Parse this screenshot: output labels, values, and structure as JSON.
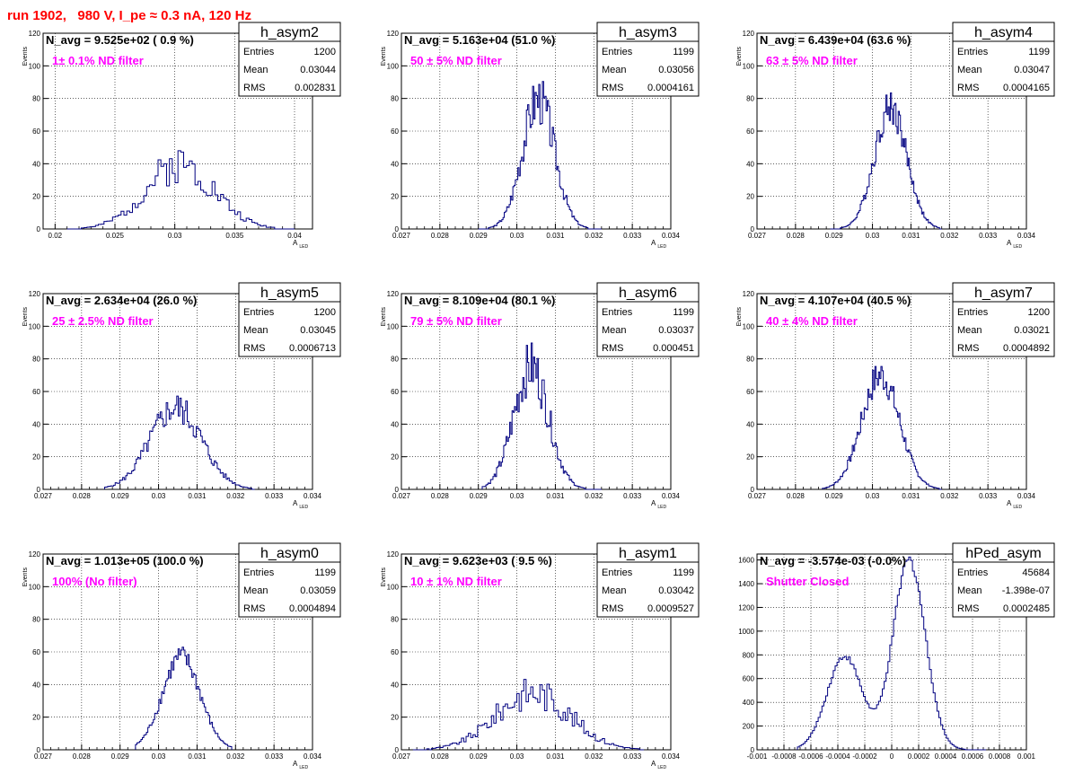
{
  "run_title": "run 1902,   980 V, I_pe ≈ 0.3 nA, 120 Hz",
  "chart_data": [
    {
      "type": "histogram",
      "name": "h_asym2",
      "stats_title": "h_asym2",
      "entries": "1200",
      "mean": "0.03044",
      "rms": "0.002831",
      "navg": "N_avg = 9.525e+02 ( 0.9 %)",
      "filter": "1± 0.1% ND filter",
      "xlabel": "A",
      "xlabel_sub": "LED",
      "ylabel": "Events",
      "xlim": [
        0.019,
        0.0415
      ],
      "ylim": [
        0,
        120
      ],
      "xticks": [
        {
          "v": 0.02,
          "l": "0.02"
        },
        {
          "v": 0.025,
          "l": "0.025"
        },
        {
          "v": 0.03,
          "l": "0.03"
        },
        {
          "v": 0.035,
          "l": "0.035"
        },
        {
          "v": 0.04,
          "l": "0.04"
        }
      ],
      "yticks": [
        {
          "v": 0,
          "l": "0"
        },
        {
          "v": 20,
          "l": "20"
        },
        {
          "v": 40,
          "l": "40"
        },
        {
          "v": 60,
          "l": "60"
        },
        {
          "v": 80,
          "l": "80"
        },
        {
          "v": 100,
          "l": "100"
        },
        {
          "v": 120,
          "l": "120"
        }
      ],
      "mu": 0.03044,
      "sigma": 0.002831,
      "peak": 40,
      "noise": 0.3,
      "seed": 2,
      "bins": 80,
      "range": [
        0.021,
        0.04
      ]
    },
    {
      "type": "histogram",
      "name": "h_asym3",
      "stats_title": "h_asym3",
      "entries": "1199",
      "mean": "0.03056",
      "rms": "0.0004161",
      "navg": "N_avg = 5.163e+04 (51.0 %)",
      "filter": "50 ± 5% ND filter",
      "xlabel": "A",
      "xlabel_sub": "LED",
      "ylabel": "Events",
      "xlim": [
        0.027,
        0.034
      ],
      "ylim": [
        0,
        120
      ],
      "xticks": [
        {
          "v": 0.027,
          "l": "0.027"
        },
        {
          "v": 0.028,
          "l": "0.028"
        },
        {
          "v": 0.029,
          "l": "0.029"
        },
        {
          "v": 0.03,
          "l": "0.03"
        },
        {
          "v": 0.031,
          "l": "0.031"
        },
        {
          "v": 0.032,
          "l": "0.032"
        },
        {
          "v": 0.033,
          "l": "0.033"
        },
        {
          "v": 0.034,
          "l": "0.034"
        }
      ],
      "yticks": [
        {
          "v": 0,
          "l": "0"
        },
        {
          "v": 20,
          "l": "20"
        },
        {
          "v": 40,
          "l": "40"
        },
        {
          "v": 60,
          "l": "60"
        },
        {
          "v": 80,
          "l": "80"
        },
        {
          "v": 100,
          "l": "100"
        },
        {
          "v": 120,
          "l": "120"
        }
      ],
      "mu": 0.03056,
      "sigma": 0.000416,
      "peak": 80,
      "noise": 0.2,
      "seed": 3,
      "bins": 100,
      "range": [
        0.029,
        0.0322
      ]
    },
    {
      "type": "histogram",
      "name": "h_asym4",
      "stats_title": "h_asym4",
      "entries": "1199",
      "mean": "0.03047",
      "rms": "0.0004165",
      "navg": "N_avg = 6.439e+04 (63.6 %)",
      "filter": "63 ± 5% ND filter",
      "xlabel": "A",
      "xlabel_sub": "LED",
      "ylabel": "Events",
      "xlim": [
        0.027,
        0.034
      ],
      "ylim": [
        0,
        120
      ],
      "xticks": [
        {
          "v": 0.027,
          "l": "0.027"
        },
        {
          "v": 0.028,
          "l": "0.028"
        },
        {
          "v": 0.029,
          "l": "0.029"
        },
        {
          "v": 0.03,
          "l": "0.03"
        },
        {
          "v": 0.031,
          "l": "0.031"
        },
        {
          "v": 0.032,
          "l": "0.032"
        },
        {
          "v": 0.033,
          "l": "0.033"
        },
        {
          "v": 0.034,
          "l": "0.034"
        }
      ],
      "yticks": [
        {
          "v": 0,
          "l": "0"
        },
        {
          "v": 20,
          "l": "20"
        },
        {
          "v": 40,
          "l": "40"
        },
        {
          "v": 60,
          "l": "60"
        },
        {
          "v": 80,
          "l": "80"
        },
        {
          "v": 100,
          "l": "100"
        },
        {
          "v": 120,
          "l": "120"
        }
      ],
      "mu": 0.03047,
      "sigma": 0.000417,
      "peak": 75,
      "noise": 0.15,
      "seed": 4,
      "bins": 100,
      "range": [
        0.0289,
        0.0318
      ]
    },
    {
      "type": "histogram",
      "name": "h_asym5",
      "stats_title": "h_asym5",
      "entries": "1200",
      "mean": "0.03045",
      "rms": "0.0006713",
      "navg": "N_avg = 2.634e+04 (26.0 %)",
      "filter": "25 ± 2.5% ND filter",
      "xlabel": "A",
      "xlabel_sub": "LED",
      "ylabel": "Events",
      "xlim": [
        0.027,
        0.034
      ],
      "ylim": [
        0,
        120
      ],
      "xticks": [
        {
          "v": 0.027,
          "l": "0.027"
        },
        {
          "v": 0.028,
          "l": "0.028"
        },
        {
          "v": 0.029,
          "l": "0.029"
        },
        {
          "v": 0.03,
          "l": "0.03"
        },
        {
          "v": 0.031,
          "l": "0.031"
        },
        {
          "v": 0.032,
          "l": "0.032"
        },
        {
          "v": 0.033,
          "l": "0.033"
        },
        {
          "v": 0.034,
          "l": "0.034"
        }
      ],
      "yticks": [
        {
          "v": 0,
          "l": "0"
        },
        {
          "v": 20,
          "l": "20"
        },
        {
          "v": 40,
          "l": "40"
        },
        {
          "v": 60,
          "l": "60"
        },
        {
          "v": 80,
          "l": "80"
        },
        {
          "v": 100,
          "l": "100"
        },
        {
          "v": 120,
          "l": "120"
        }
      ],
      "mu": 0.03045,
      "sigma": 0.000671,
      "peak": 50,
      "noise": 0.2,
      "seed": 5,
      "bins": 100,
      "range": [
        0.0286,
        0.0325
      ]
    },
    {
      "type": "histogram",
      "name": "h_asym6",
      "stats_title": "h_asym6",
      "entries": "1199",
      "mean": "0.03037",
      "rms": "0.000451",
      "navg": "N_avg = 8.109e+04 (80.1 %)",
      "filter": "79 ± 5% ND filter",
      "xlabel": "A",
      "xlabel_sub": "LED",
      "ylabel": "Events",
      "xlim": [
        0.027,
        0.034
      ],
      "ylim": [
        0,
        120
      ],
      "xticks": [
        {
          "v": 0.027,
          "l": "0.027"
        },
        {
          "v": 0.028,
          "l": "0.028"
        },
        {
          "v": 0.029,
          "l": "0.029"
        },
        {
          "v": 0.03,
          "l": "0.03"
        },
        {
          "v": 0.031,
          "l": "0.031"
        },
        {
          "v": 0.032,
          "l": "0.032"
        },
        {
          "v": 0.033,
          "l": "0.033"
        },
        {
          "v": 0.034,
          "l": "0.034"
        }
      ],
      "yticks": [
        {
          "v": 0,
          "l": "0"
        },
        {
          "v": 20,
          "l": "20"
        },
        {
          "v": 40,
          "l": "40"
        },
        {
          "v": 60,
          "l": "60"
        },
        {
          "v": 80,
          "l": "80"
        },
        {
          "v": 100,
          "l": "100"
        },
        {
          "v": 120,
          "l": "120"
        }
      ],
      "mu": 0.03037,
      "sigma": 0.000451,
      "peak": 75,
      "noise": 0.22,
      "seed": 6,
      "bins": 100,
      "range": [
        0.0291,
        0.0322
      ]
    },
    {
      "type": "histogram",
      "name": "h_asym7",
      "stats_title": "h_asym7",
      "entries": "1200",
      "mean": "0.03021",
      "rms": "0.0004892",
      "navg": "N_avg = 4.107e+04 (40.5 %)",
      "filter": "40 ± 4% ND filter",
      "xlabel": "A",
      "xlabel_sub": "LED",
      "ylabel": "Events",
      "xlim": [
        0.027,
        0.034
      ],
      "ylim": [
        0,
        120
      ],
      "xticks": [
        {
          "v": 0.027,
          "l": "0.027"
        },
        {
          "v": 0.028,
          "l": "0.028"
        },
        {
          "v": 0.029,
          "l": "0.029"
        },
        {
          "v": 0.03,
          "l": "0.03"
        },
        {
          "v": 0.031,
          "l": "0.031"
        },
        {
          "v": 0.032,
          "l": "0.032"
        },
        {
          "v": 0.033,
          "l": "0.033"
        },
        {
          "v": 0.034,
          "l": "0.034"
        }
      ],
      "yticks": [
        {
          "v": 0,
          "l": "0"
        },
        {
          "v": 20,
          "l": "20"
        },
        {
          "v": 40,
          "l": "40"
        },
        {
          "v": 60,
          "l": "60"
        },
        {
          "v": 80,
          "l": "80"
        },
        {
          "v": 100,
          "l": "100"
        },
        {
          "v": 120,
          "l": "120"
        }
      ],
      "mu": 0.03021,
      "sigma": 0.000489,
      "peak": 70,
      "noise": 0.15,
      "seed": 7,
      "bins": 100,
      "range": [
        0.0287,
        0.0318
      ]
    },
    {
      "type": "histogram",
      "name": "h_asym0",
      "stats_title": "h_asym0",
      "entries": "1199",
      "mean": "0.03059",
      "rms": "0.0004894",
      "navg": "N_avg = 1.013e+05 (100.0 %)",
      "filter": "100% (No filter)",
      "xlabel": "A",
      "xlabel_sub": "LED",
      "ylabel": "Events",
      "xlim": [
        0.027,
        0.034
      ],
      "ylim": [
        0,
        120
      ],
      "xticks": [
        {
          "v": 0.027,
          "l": "0.027"
        },
        {
          "v": 0.028,
          "l": "0.028"
        },
        {
          "v": 0.029,
          "l": "0.029"
        },
        {
          "v": 0.03,
          "l": "0.03"
        },
        {
          "v": 0.031,
          "l": "0.031"
        },
        {
          "v": 0.032,
          "l": "0.032"
        },
        {
          "v": 0.033,
          "l": "0.033"
        },
        {
          "v": 0.034,
          "l": "0.034"
        }
      ],
      "yticks": [
        {
          "v": 0,
          "l": "0"
        },
        {
          "v": 20,
          "l": "20"
        },
        {
          "v": 40,
          "l": "40"
        },
        {
          "v": 60,
          "l": "60"
        },
        {
          "v": 80,
          "l": "80"
        },
        {
          "v": 100,
          "l": "100"
        },
        {
          "v": 120,
          "l": "120"
        }
      ],
      "mu": 0.03059,
      "sigma": 0.000489,
      "peak": 57,
      "noise": 0.12,
      "seed": 8,
      "bins": 70,
      "range": [
        0.0294,
        0.0319
      ]
    },
    {
      "type": "histogram",
      "name": "h_asym1",
      "stats_title": "h_asym1",
      "entries": "1199",
      "mean": "0.03042",
      "rms": "0.0009527",
      "navg": "N_avg = 9.623e+03 ( 9.5 %)",
      "filter": "10 ± 1% ND filter",
      "xlabel": "A",
      "xlabel_sub": "LED",
      "ylabel": "Events",
      "xlim": [
        0.027,
        0.034
      ],
      "ylim": [
        0,
        120
      ],
      "xticks": [
        {
          "v": 0.027,
          "l": "0.027"
        },
        {
          "v": 0.028,
          "l": "0.028"
        },
        {
          "v": 0.029,
          "l": "0.029"
        },
        {
          "v": 0.03,
          "l": "0.03"
        },
        {
          "v": 0.031,
          "l": "0.031"
        },
        {
          "v": 0.032,
          "l": "0.032"
        },
        {
          "v": 0.033,
          "l": "0.033"
        },
        {
          "v": 0.034,
          "l": "0.034"
        }
      ],
      "yticks": [
        {
          "v": 0,
          "l": "0"
        },
        {
          "v": 20,
          "l": "20"
        },
        {
          "v": 40,
          "l": "40"
        },
        {
          "v": 60,
          "l": "60"
        },
        {
          "v": 80,
          "l": "80"
        },
        {
          "v": 100,
          "l": "100"
        },
        {
          "v": 120,
          "l": "120"
        }
      ],
      "mu": 0.03042,
      "sigma": 0.000953,
      "peak": 35,
      "noise": 0.3,
      "seed": 9,
      "bins": 100,
      "range": [
        0.0273,
        0.0333
      ]
    },
    {
      "type": "histogram",
      "name": "hPed_asym",
      "stats_title": "hPed_asym",
      "entries": "45684",
      "mean": "-1.398e-07",
      "rms": "0.0002485",
      "navg": "N_avg = -3.574e-03 (-0.0%)",
      "filter": "Shutter Closed",
      "xlabel": "",
      "xlabel_sub": "",
      "ylabel": "",
      "xlim": [
        -0.001,
        0.001
      ],
      "ylim": [
        0,
        1650
      ],
      "xticks": [
        {
          "v": -0.001,
          "l": "-0.001"
        },
        {
          "v": -0.0008,
          "l": "-0.0008"
        },
        {
          "v": -0.0006,
          "l": "-0.0006"
        },
        {
          "v": -0.0004,
          "l": "-0.0004"
        },
        {
          "v": -0.0002,
          "l": "-0.0002"
        },
        {
          "v": 0,
          "l": "0"
        },
        {
          "v": 0.0002,
          "l": "0.0002"
        },
        {
          "v": 0.0004,
          "l": "0.0004"
        },
        {
          "v": 0.0006,
          "l": "0.0006"
        },
        {
          "v": 0.0008,
          "l": "0.0008"
        },
        {
          "v": 0.001,
          "l": "0.001"
        }
      ],
      "yticks": [
        {
          "v": 0,
          "l": "0"
        },
        {
          "v": 200,
          "l": "200"
        },
        {
          "v": 400,
          "l": "400"
        },
        {
          "v": 600,
          "l": "600"
        },
        {
          "v": 800,
          "l": "800"
        },
        {
          "v": 1000,
          "l": "1000"
        },
        {
          "v": 1200,
          "l": "1200"
        },
        {
          "v": 1400,
          "l": "1400"
        },
        {
          "v": 1600,
          "l": "1600"
        }
      ],
      "bimodal": [
        {
          "mu": -0.00035,
          "sigma": 0.00013,
          "peak": 790
        },
        {
          "mu": 0.00013,
          "sigma": 0.00012,
          "peak": 1600
        }
      ],
      "noise": 0.03,
      "seed": 10,
      "bins": 100,
      "range": [
        -0.0007,
        0.0007
      ]
    }
  ],
  "colors": {
    "line": "#000080",
    "annot": "#ff00ff",
    "title": "#ff0000",
    "grid": "#000000"
  }
}
